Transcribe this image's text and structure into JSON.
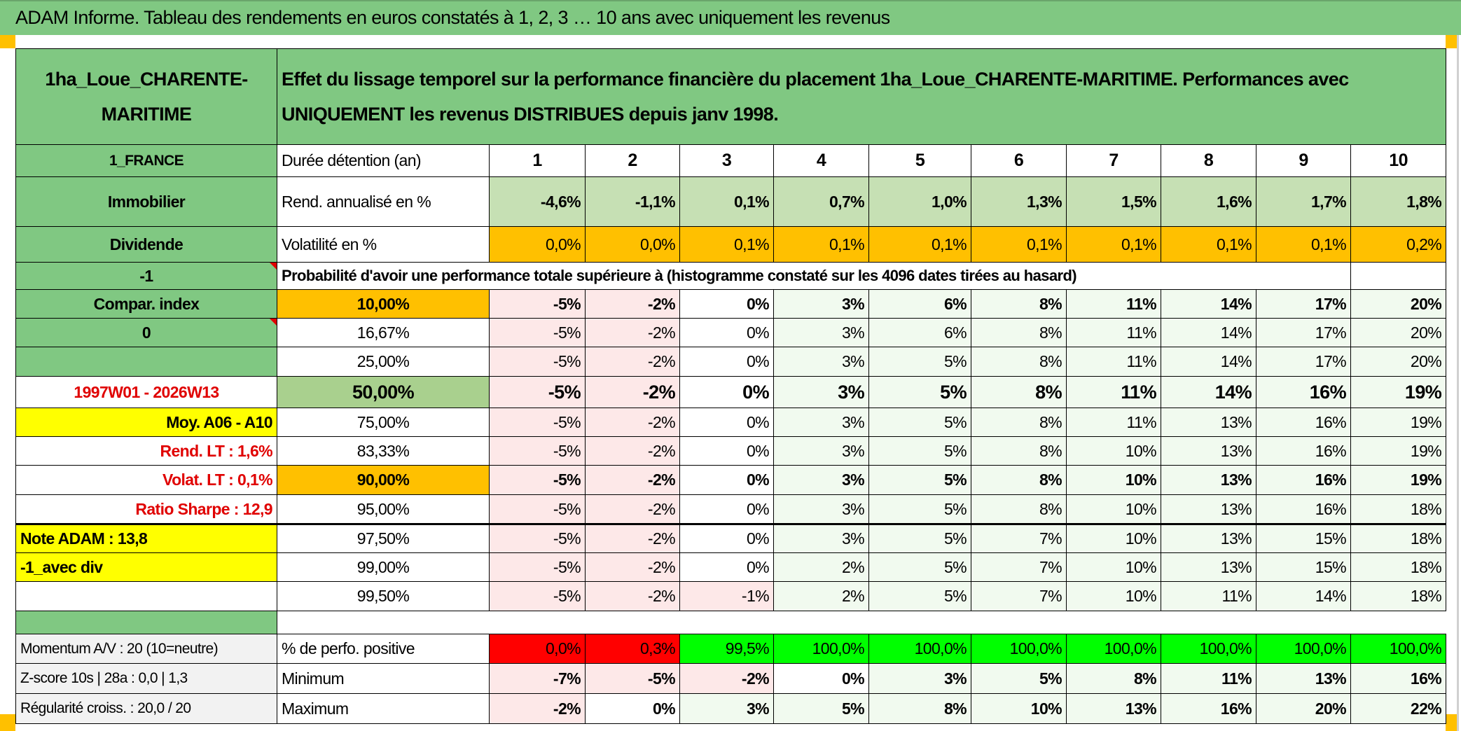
{
  "title": "ADAM Informe. Tableau des rendements en euros constatés à 1, 2, 3 … 10 ans avec uniquement les revenus",
  "colors": {
    "header_green": "#80c882",
    "orange": "#ffc000",
    "bright_green": "#00ff00",
    "red": "#ff0000",
    "yellow": "#ffff00",
    "text_red": "#e00000"
  },
  "header": {
    "asset_name": "1ha_Loue_CHARENTE-MARITIME",
    "description": "Effet du lissage temporel sur la performance financière du placement 1ha_Loue_CHARENTE-MARITIME. Performances avec UNIQUEMENT les revenus DISTRIBUES depuis janv 1998."
  },
  "summary": {
    "country": "1_FRANCE",
    "category": "Immobilier",
    "type": "Dividende",
    "flag_value": "-1",
    "duration_label": "Durée détention (an)",
    "years": [
      "1",
      "2",
      "3",
      "4",
      "5",
      "6",
      "7",
      "8",
      "9",
      "10"
    ],
    "return_label": "Rend. annualisé en %",
    "returns": [
      "-4,6%",
      "-1,1%",
      "0,1%",
      "0,7%",
      "1,0%",
      "1,3%",
      "1,5%",
      "1,6%",
      "1,7%",
      "1,8%"
    ],
    "volatility_label": "Volatilité en %",
    "volatility": [
      "0,0%",
      "0,0%",
      "0,1%",
      "0,1%",
      "0,1%",
      "0,1%",
      "0,1%",
      "0,1%",
      "0,1%",
      "0,2%"
    ],
    "probability_label": "Probabilité d'avoir une performance totale supérieure à (histogramme constaté sur les 4096 dates tirées au hasard)"
  },
  "probability_rows": [
    {
      "side": "Compar. index",
      "pct": "10,00%",
      "values": [
        "-5%",
        "-2%",
        "0%",
        "3%",
        "6%",
        "8%",
        "11%",
        "14%",
        "17%",
        "20%"
      ]
    },
    {
      "side": "0",
      "pct": "16,67%",
      "values": [
        "-5%",
        "-2%",
        "0%",
        "3%",
        "6%",
        "8%",
        "11%",
        "14%",
        "17%",
        "20%"
      ]
    },
    {
      "side": "",
      "pct": "25,00%",
      "values": [
        "-5%",
        "-2%",
        "0%",
        "3%",
        "5%",
        "8%",
        "11%",
        "14%",
        "17%",
        "20%"
      ]
    },
    {
      "side": "1997W01 - 2026W13",
      "pct": "50,00%",
      "values": [
        "-5%",
        "-2%",
        "0%",
        "3%",
        "5%",
        "8%",
        "11%",
        "14%",
        "16%",
        "19%"
      ]
    },
    {
      "side": "Moy. A06 - A10",
      "pct": "75,00%",
      "values": [
        "-5%",
        "-2%",
        "0%",
        "3%",
        "5%",
        "8%",
        "11%",
        "13%",
        "16%",
        "19%"
      ]
    },
    {
      "side": "Rend. LT :   1,6%",
      "pct": "83,33%",
      "values": [
        "-5%",
        "-2%",
        "0%",
        "3%",
        "5%",
        "8%",
        "10%",
        "13%",
        "16%",
        "19%"
      ]
    },
    {
      "side": "Volat. LT :   0,1%",
      "pct": "90,00%",
      "values": [
        "-5%",
        "-2%",
        "0%",
        "3%",
        "5%",
        "8%",
        "10%",
        "13%",
        "16%",
        "19%"
      ]
    },
    {
      "side": "Ratio Sharpe :   12,9",
      "pct": "95,00%",
      "values": [
        "-5%",
        "-2%",
        "0%",
        "3%",
        "5%",
        "8%",
        "10%",
        "13%",
        "16%",
        "18%"
      ]
    },
    {
      "side": "Note ADAM : 13,8",
      "pct": "97,50%",
      "values": [
        "-5%",
        "-2%",
        "0%",
        "3%",
        "5%",
        "7%",
        "10%",
        "13%",
        "15%",
        "18%"
      ]
    },
    {
      "side": "-1_avec div",
      "pct": "99,00%",
      "values": [
        "-5%",
        "-2%",
        "0%",
        "2%",
        "5%",
        "7%",
        "10%",
        "13%",
        "15%",
        "18%"
      ]
    },
    {
      "side": "",
      "pct": "99,50%",
      "values": [
        "-5%",
        "-2%",
        "-1%",
        "2%",
        "5%",
        "7%",
        "10%",
        "11%",
        "14%",
        "18%"
      ]
    }
  ],
  "bottom_rows": [
    {
      "side": "Momentum A/V : 20 (10=neutre)",
      "label": "% de perfo. positive",
      "values": [
        "0,0%",
        "0,3%",
        "99,5%",
        "100,0%",
        "100,0%",
        "100,0%",
        "100,0%",
        "100,0%",
        "100,0%",
        "100,0%"
      ]
    },
    {
      "side": "Z-score 10s | 28a : 0,0 | 1,3",
      "label": "Minimum",
      "values": [
        "-7%",
        "-5%",
        "-2%",
        "0%",
        "3%",
        "5%",
        "8%",
        "11%",
        "13%",
        "16%"
      ]
    },
    {
      "side": "Régularité croiss. : 20,0 / 20",
      "label": "Maximum",
      "values": [
        "-2%",
        "0%",
        "3%",
        "5%",
        "8%",
        "10%",
        "13%",
        "16%",
        "20%",
        "22%"
      ]
    }
  ]
}
